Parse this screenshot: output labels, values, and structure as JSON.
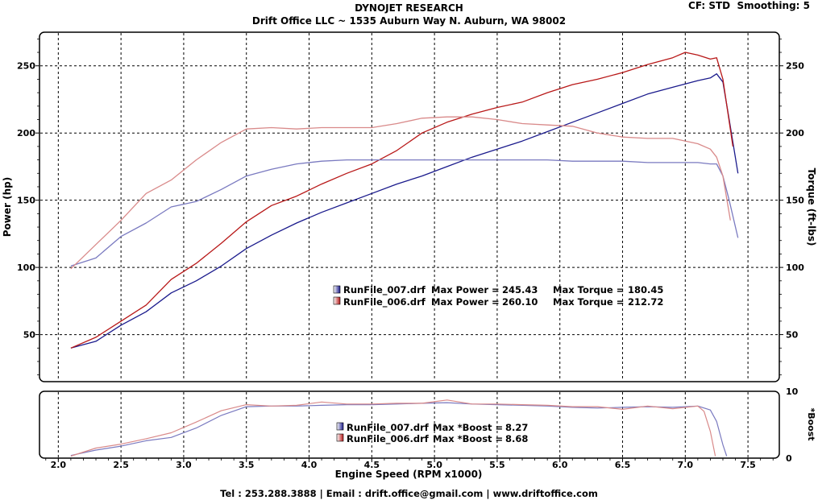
{
  "header": {
    "title": "DYNOJET RESEARCH",
    "subtitle": "Drift Office LLC ~ 1535 Auburn Way N. Auburn, WA 98002",
    "cf_label": "CF: STD  Smoothing: 5"
  },
  "footer": {
    "contact": "Tel : 253.288.3888 | Email : drift.office@gmail.com | www.driftoffice.com"
  },
  "colors": {
    "run007": "#1a1a8c",
    "run006": "#b81818",
    "run007_light": "#7a7ac0",
    "run006_light": "#d98a8a",
    "grid": "#000000",
    "background": "#ffffff"
  },
  "chart_data": [
    {
      "type": "line",
      "panel": "main",
      "xlabel": "Engine Speed (RPM x1000)",
      "ylabel": "Power (hp)",
      "y2label": "Torque (ft-lbs)",
      "xlim": [
        1.85,
        7.75
      ],
      "ylim": [
        15,
        275
      ],
      "y2lim": [
        15,
        275
      ],
      "x_ticks": [
        "2.0",
        "2.5",
        "3.0",
        "3.5",
        "4.0",
        "4.5",
        "5.0",
        "5.5",
        "6.0",
        "6.5",
        "7.0",
        "7.5"
      ],
      "y_ticks": [
        "50",
        "100",
        "150",
        "200",
        "250"
      ],
      "y2_ticks": [
        "50",
        "100",
        "150",
        "200",
        "250"
      ],
      "grid": true,
      "legend": [
        {
          "file": "RunFile_007.drf",
          "max_power_label": "Max Power =",
          "max_power": "245.43",
          "max_torque_label": "Max Torque =",
          "max_torque": "180.45"
        },
        {
          "file": "RunFile_006.drf",
          "max_power_label": "Max Power =",
          "max_power": "260.10",
          "max_torque_label": "Max Torque =",
          "max_torque": "212.72"
        }
      ],
      "series": [
        {
          "name": "RunFile_007.drf",
          "quantity": "power",
          "x": [
            2.1,
            2.3,
            2.5,
            2.7,
            2.9,
            3.1,
            3.3,
            3.5,
            3.7,
            3.9,
            4.1,
            4.3,
            4.5,
            4.7,
            4.9,
            5.1,
            5.3,
            5.5,
            5.7,
            5.9,
            6.1,
            6.3,
            6.5,
            6.7,
            6.9,
            7.1,
            7.2,
            7.25,
            7.3,
            7.35,
            7.42
          ],
          "y": [
            40,
            45,
            57,
            67,
            81,
            90,
            101,
            114,
            124,
            133,
            141,
            148,
            155,
            162,
            168,
            175,
            182,
            188,
            194,
            201,
            208,
            215,
            222,
            229,
            234,
            239,
            241,
            244,
            238,
            210,
            170
          ]
        },
        {
          "name": "RunFile_006.drf",
          "quantity": "power",
          "x": [
            2.1,
            2.3,
            2.5,
            2.7,
            2.9,
            3.1,
            3.3,
            3.5,
            3.7,
            3.9,
            4.1,
            4.3,
            4.5,
            4.7,
            4.9,
            5.1,
            5.3,
            5.5,
            5.7,
            5.9,
            6.1,
            6.3,
            6.5,
            6.7,
            6.9,
            7.0,
            7.1,
            7.2,
            7.25,
            7.3,
            7.38
          ],
          "y": [
            40,
            48,
            60,
            72,
            91,
            103,
            118,
            134,
            146,
            153,
            162,
            170,
            177,
            187,
            200,
            208,
            214,
            219,
            223,
            230,
            236,
            240,
            245,
            251,
            256,
            260,
            258,
            255,
            256,
            240,
            190
          ]
        },
        {
          "name": "RunFile_007.drf",
          "quantity": "torque",
          "x": [
            2.1,
            2.3,
            2.5,
            2.7,
            2.9,
            3.1,
            3.3,
            3.5,
            3.7,
            3.9,
            4.1,
            4.3,
            4.5,
            4.7,
            4.9,
            5.1,
            5.3,
            5.5,
            5.7,
            5.9,
            6.1,
            6.3,
            6.5,
            6.7,
            6.9,
            7.1,
            7.2,
            7.25,
            7.3,
            7.35,
            7.42
          ],
          "y": [
            101,
            107,
            123,
            133,
            145,
            149,
            158,
            168,
            173,
            177,
            179,
            180,
            180,
            180,
            180,
            180,
            180,
            180,
            180,
            180,
            179,
            179,
            179,
            178,
            178,
            178,
            177,
            177,
            168,
            150,
            122
          ]
        },
        {
          "name": "RunFile_006.drf",
          "quantity": "torque",
          "x": [
            2.1,
            2.3,
            2.5,
            2.7,
            2.9,
            3.1,
            3.3,
            3.5,
            3.7,
            3.9,
            4.1,
            4.3,
            4.5,
            4.7,
            4.9,
            5.1,
            5.3,
            5.5,
            5.7,
            5.9,
            6.1,
            6.3,
            6.5,
            6.7,
            6.9,
            7.1,
            7.2,
            7.25,
            7.3,
            7.36
          ],
          "y": [
            99,
            117,
            135,
            155,
            165,
            180,
            193,
            203,
            204,
            203,
            204,
            204,
            204,
            207,
            211,
            212,
            212,
            210,
            207,
            206,
            205,
            200,
            197,
            196,
            196,
            192,
            188,
            182,
            168,
            135
          ]
        }
      ]
    },
    {
      "type": "line",
      "panel": "boost",
      "xlabel": "Engine Speed (RPM x1000)",
      "y2label": "*Boost",
      "xlim": [
        1.85,
        7.75
      ],
      "y2lim": [
        0,
        10
      ],
      "y2_ticks": [
        "0",
        "10"
      ],
      "grid": true,
      "legend": [
        {
          "file": "RunFile_007.drf",
          "max_boost_label": "Max *Boost =",
          "max_boost": "8.27"
        },
        {
          "file": "RunFile_006.drf",
          "max_boost_label": "Max *Boost =",
          "max_boost": "8.68"
        }
      ],
      "series": [
        {
          "name": "RunFile_007.drf",
          "quantity": "boost",
          "x": [
            2.1,
            2.3,
            2.5,
            2.7,
            2.9,
            3.1,
            3.3,
            3.5,
            3.7,
            3.9,
            4.1,
            4.3,
            4.5,
            4.7,
            4.9,
            5.1,
            5.3,
            5.5,
            5.7,
            5.9,
            6.1,
            6.3,
            6.5,
            6.7,
            6.9,
            7.1,
            7.2,
            7.25,
            7.3,
            7.33
          ],
          "y": [
            0.4,
            1.2,
            1.8,
            2.6,
            3.1,
            4.5,
            6.4,
            7.7,
            7.8,
            7.8,
            7.9,
            8.0,
            8.0,
            8.1,
            8.2,
            8.3,
            8.1,
            8.0,
            7.9,
            7.8,
            7.6,
            7.5,
            7.6,
            7.7,
            7.6,
            7.8,
            7.2,
            5.5,
            2.0,
            0.3
          ]
        },
        {
          "name": "RunFile_006.drf",
          "quantity": "boost",
          "x": [
            2.1,
            2.3,
            2.5,
            2.7,
            2.9,
            3.1,
            3.3,
            3.5,
            3.7,
            3.9,
            4.1,
            4.3,
            4.5,
            4.7,
            4.9,
            5.1,
            5.3,
            5.5,
            5.7,
            5.9,
            6.1,
            6.3,
            6.5,
            6.7,
            6.9,
            7.1,
            7.15,
            7.2,
            7.24
          ],
          "y": [
            0.3,
            1.5,
            2.1,
            2.9,
            3.8,
            5.4,
            7.1,
            8.0,
            7.8,
            7.9,
            8.4,
            8.1,
            8.1,
            8.2,
            8.2,
            8.7,
            8.1,
            8.1,
            8.0,
            7.9,
            7.7,
            7.7,
            7.3,
            7.8,
            7.4,
            7.8,
            7.0,
            4.0,
            0.3
          ]
        }
      ]
    }
  ]
}
